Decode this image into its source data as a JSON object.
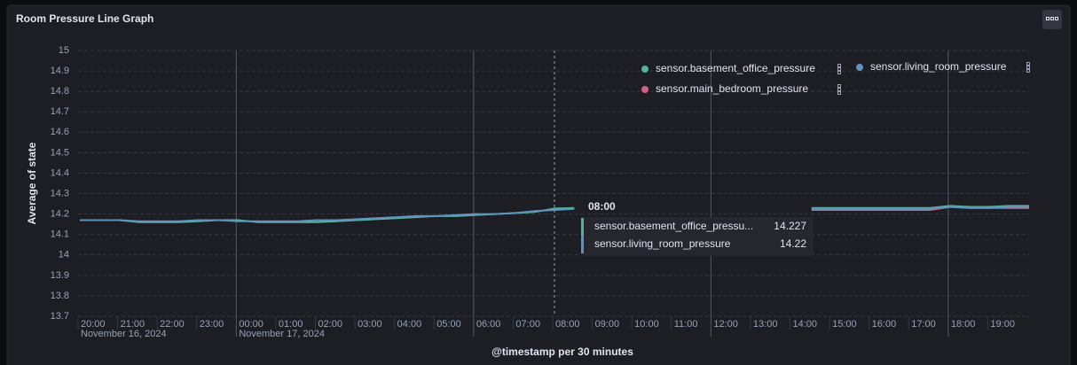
{
  "chart_data": {
    "type": "line",
    "title": "Room Pressure Line Graph",
    "y_label": "Average of state",
    "x_label": "@timestamp per 30 minutes",
    "x": [
      "2024-11-16T20:00",
      "2024-11-16T20:30",
      "2024-11-16T21:00",
      "2024-11-16T21:30",
      "2024-11-16T22:00",
      "2024-11-16T22:30",
      "2024-11-16T23:00",
      "2024-11-16T23:30",
      "2024-11-17T00:00",
      "2024-11-17T00:30",
      "2024-11-17T01:00",
      "2024-11-17T01:30",
      "2024-11-17T02:00",
      "2024-11-17T02:30",
      "2024-11-17T03:00",
      "2024-11-17T03:30",
      "2024-11-17T04:00",
      "2024-11-17T04:30",
      "2024-11-17T05:00",
      "2024-11-17T05:30",
      "2024-11-17T06:00",
      "2024-11-17T06:30",
      "2024-11-17T07:00",
      "2024-11-17T07:30",
      "2024-11-17T08:00",
      "2024-11-17T08:30",
      "2024-11-17T09:00",
      "2024-11-17T09:30",
      "2024-11-17T10:00",
      "2024-11-17T10:30",
      "2024-11-17T11:00",
      "2024-11-17T11:30",
      "2024-11-17T12:00",
      "2024-11-17T12:30",
      "2024-11-17T13:00",
      "2024-11-17T13:30",
      "2024-11-17T14:00",
      "2024-11-17T14:30",
      "2024-11-17T15:00",
      "2024-11-17T15:30",
      "2024-11-17T16:00",
      "2024-11-17T16:30",
      "2024-11-17T17:00",
      "2024-11-17T17:30",
      "2024-11-17T18:00",
      "2024-11-17T18:30",
      "2024-11-17T19:00",
      "2024-11-17T19:30",
      "2024-11-17T20:00"
    ],
    "series": [
      {
        "name": "sensor.basement_office_pressure",
        "color": "#54b399",
        "values": [
          14.17,
          14.17,
          14.17,
          14.16,
          14.16,
          14.16,
          14.165,
          14.17,
          14.17,
          14.16,
          14.16,
          14.16,
          14.16,
          14.165,
          14.17,
          14.175,
          14.18,
          14.185,
          14.19,
          14.19,
          14.195,
          14.2,
          14.205,
          14.21,
          14.227,
          14.23,
          null,
          null,
          null,
          null,
          null,
          null,
          null,
          null,
          null,
          null,
          null,
          14.23,
          14.23,
          14.23,
          14.23,
          14.23,
          14.23,
          14.23,
          14.24,
          14.235,
          14.235,
          14.24,
          14.24
        ]
      },
      {
        "name": "sensor.living_room_pressure",
        "color": "#6092c0",
        "values": [
          14.17,
          14.17,
          14.17,
          14.165,
          14.165,
          14.165,
          14.17,
          14.17,
          14.165,
          14.165,
          14.165,
          14.165,
          14.17,
          14.17,
          14.175,
          14.18,
          14.185,
          14.19,
          14.19,
          14.195,
          14.2,
          14.2,
          14.205,
          14.215,
          14.22,
          14.225,
          null,
          null,
          null,
          null,
          null,
          null,
          null,
          null,
          null,
          null,
          null,
          14.225,
          14.225,
          14.225,
          14.225,
          14.225,
          14.225,
          14.225,
          14.235,
          14.23,
          14.23,
          14.235,
          14.235
        ]
      },
      {
        "name": "sensor.main_bedroom_pressure",
        "color": "#d36086",
        "values": [
          null,
          null,
          null,
          null,
          null,
          null,
          null,
          null,
          null,
          null,
          null,
          null,
          null,
          null,
          null,
          null,
          null,
          null,
          null,
          null,
          null,
          null,
          null,
          null,
          null,
          null,
          null,
          null,
          null,
          null,
          null,
          null,
          null,
          null,
          null,
          null,
          null,
          14.22,
          14.22,
          14.22,
          14.22,
          14.22,
          14.22,
          14.22,
          14.235,
          14.23,
          14.23,
          14.23,
          14.23
        ]
      }
    ],
    "xlim": [
      "2024-11-16T20:00",
      "2024-11-17T20:00"
    ],
    "xticks": [
      {
        "value": "2024-11-16T20:00",
        "label": "20:00"
      },
      {
        "value": "2024-11-16T21:00",
        "label": "21:00"
      },
      {
        "value": "2024-11-16T22:00",
        "label": "22:00"
      },
      {
        "value": "2024-11-16T23:00",
        "label": "23:00"
      },
      {
        "value": "2024-11-17T00:00",
        "label": "00:00"
      },
      {
        "value": "2024-11-17T01:00",
        "label": "01:00"
      },
      {
        "value": "2024-11-17T02:00",
        "label": "02:00"
      },
      {
        "value": "2024-11-17T03:00",
        "label": "03:00"
      },
      {
        "value": "2024-11-17T04:00",
        "label": "04:00"
      },
      {
        "value": "2024-11-17T05:00",
        "label": "05:00"
      },
      {
        "value": "2024-11-17T06:00",
        "label": "06:00"
      },
      {
        "value": "2024-11-17T07:00",
        "label": "07:00"
      },
      {
        "value": "2024-11-17T08:00",
        "label": "08:00"
      },
      {
        "value": "2024-11-17T09:00",
        "label": "09:00"
      },
      {
        "value": "2024-11-17T10:00",
        "label": "10:00"
      },
      {
        "value": "2024-11-17T11:00",
        "label": "11:00"
      },
      {
        "value": "2024-11-17T12:00",
        "label": "12:00"
      },
      {
        "value": "2024-11-17T13:00",
        "label": "13:00"
      },
      {
        "value": "2024-11-17T14:00",
        "label": "14:00"
      },
      {
        "value": "2024-11-17T15:00",
        "label": "15:00"
      },
      {
        "value": "2024-11-17T16:00",
        "label": "16:00"
      },
      {
        "value": "2024-11-17T17:00",
        "label": "17:00"
      },
      {
        "value": "2024-11-17T18:00",
        "label": "18:00"
      },
      {
        "value": "2024-11-17T19:00",
        "label": "19:00"
      }
    ],
    "x_date_labels": [
      {
        "value": "2024-11-16T20:00",
        "label": "November 16, 2024"
      },
      {
        "value": "2024-11-17T00:00",
        "label": "November 17, 2024"
      }
    ],
    "ylim": [
      13.7,
      15
    ],
    "yticks": [
      13.7,
      13.8,
      13.9,
      14,
      14.1,
      14.2,
      14.3,
      14.4,
      14.5,
      14.6,
      14.7,
      14.8,
      14.9,
      15
    ],
    "grid": true,
    "legend": "top-right",
    "tooltip": {
      "title": "08:00",
      "x": "2024-11-17T08:00",
      "rows": [
        {
          "name": "sensor.basement_office_pressu...",
          "value": 14.227,
          "color": "#54b399"
        },
        {
          "name": "sensor.living_room_pressure",
          "value": 14.22,
          "color": "#6092c0"
        }
      ]
    }
  }
}
